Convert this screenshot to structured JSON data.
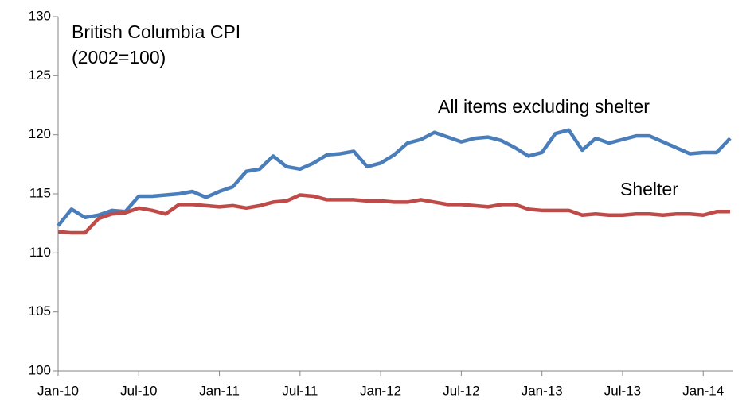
{
  "chart_data": {
    "type": "line",
    "title": [
      "British Columbia CPI",
      "(2002=100)"
    ],
    "categories": [
      "Jan-10",
      null,
      null,
      null,
      null,
      null,
      "Jul-10",
      null,
      null,
      null,
      null,
      null,
      "Jan-11",
      null,
      null,
      null,
      null,
      null,
      "Jul-11",
      null,
      null,
      null,
      null,
      null,
      "Jan-12",
      null,
      null,
      null,
      null,
      null,
      "Jul-12",
      null,
      null,
      null,
      null,
      null,
      "Jan-13",
      null,
      null,
      null,
      null,
      null,
      "Jul-13",
      null,
      null,
      null,
      null,
      null,
      "Jan-14",
      null,
      null
    ],
    "series": [
      {
        "name": "All items excluding shelter",
        "color": "#4a7ebb",
        "values": [
          112.3,
          113.7,
          113.0,
          113.2,
          113.6,
          113.5,
          114.8,
          114.8,
          114.9,
          115.0,
          115.2,
          114.7,
          115.2,
          115.6,
          116.9,
          117.1,
          118.2,
          117.3,
          117.1,
          117.6,
          118.3,
          118.4,
          118.6,
          117.3,
          117.6,
          118.3,
          119.3,
          119.6,
          120.2,
          119.8,
          119.4,
          119.7,
          119.8,
          119.5,
          118.9,
          118.2,
          118.5,
          120.1,
          120.4,
          118.7,
          119.7,
          119.3,
          119.6,
          119.9,
          119.9,
          119.4,
          118.9,
          118.4,
          118.5,
          118.5,
          119.7
        ]
      },
      {
        "name": "Shelter",
        "color": "#be4b48",
        "values": [
          111.8,
          111.7,
          111.7,
          112.9,
          113.3,
          113.4,
          113.8,
          113.6,
          113.3,
          114.1,
          114.1,
          114.0,
          113.9,
          114.0,
          113.8,
          114.0,
          114.3,
          114.4,
          114.9,
          114.8,
          114.5,
          114.5,
          114.5,
          114.4,
          114.4,
          114.3,
          114.3,
          114.5,
          114.3,
          114.1,
          114.1,
          114.0,
          113.9,
          114.1,
          114.1,
          113.7,
          113.6,
          113.6,
          113.6,
          113.2,
          113.3,
          113.2,
          113.2,
          113.3,
          113.3,
          113.2,
          113.3,
          113.3,
          113.2,
          113.5,
          113.5
        ]
      }
    ],
    "ylim": [
      100,
      130
    ],
    "yticks": [
      100,
      105,
      110,
      115,
      120,
      125,
      130
    ],
    "grid": false
  }
}
